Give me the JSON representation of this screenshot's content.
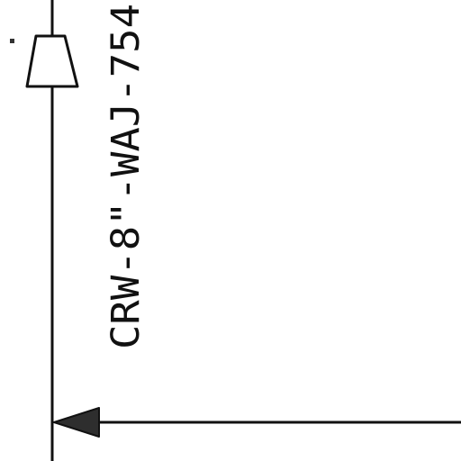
{
  "diagram": {
    "line_label": "CRW-8\"-WAJ-754",
    "colors": {
      "background": "#ffffff",
      "line": "#111111"
    },
    "symbols": [
      "pipe-reducer-symbol",
      "flow-arrow-left",
      "small-marker"
    ]
  }
}
